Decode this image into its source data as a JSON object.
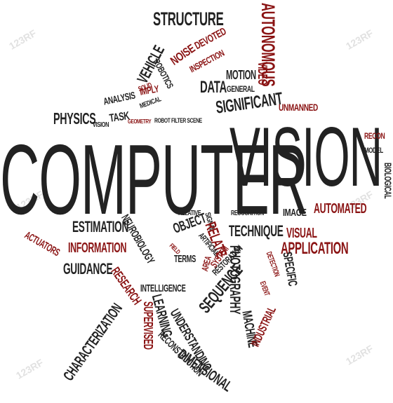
{
  "title_words": {
    "computer": "COMPUTER",
    "vision": "VISION"
  },
  "words": {
    "structure": "STRUCTURE",
    "autonomous": "AUTONOMOUS",
    "vehicle": "VEHICLE",
    "noise": "NOISE",
    "devoted": "DEVOTED",
    "robotics": "ROBOTICS",
    "inspection": "INSPECTION",
    "data": "DATA",
    "motion": "MOTION",
    "general": "GENERAL",
    "video": "VIDEO",
    "solid": "SOLID",
    "imply": "IMPLY",
    "analysis": "ANALYSIS",
    "medical": "MEDICAL",
    "significant": "SIGNIFICANT",
    "unmanned": "UNMANNED",
    "physics": "PHYSICS",
    "vision_small": "VISION",
    "task": "TASK",
    "geometry": "GEOMETRY",
    "robot_filter_scene": "ROBOT FILTER SCENE",
    "recon": "RECON",
    "model": "MODEL",
    "biological": "BIOLOGICAL",
    "estimation": "ESTIMATION",
    "relative": "RELATIVE",
    "signal": "SIGNAL",
    "recognition": "RECOGNITION",
    "image": "IMAGE",
    "automated": "AUTOMATED",
    "object": "OBJECT",
    "relate": "RELATE",
    "technique": "TECHNIQUE",
    "visual": "VISUAL",
    "actuators": "ACTUATORS",
    "information": "INFORMATION",
    "neurobiology": "NEUROBIOLOGY",
    "application": "APPLICATION",
    "guidance": "GUIDANCE",
    "field": "FIELD",
    "terms": "TERMS",
    "artificial": "ARTIFICIAL",
    "photography": "PHOTOGRAPHY",
    "specific": "SPECIFIC",
    "detection": "DETECTION",
    "event": "EVENT",
    "research": "RESEARCH",
    "intelligence": "INTELLIGENCE",
    "area": "AREA",
    "system": "SYSTEM",
    "restoration": "RESTORATION",
    "sequence": "SEQUENCE",
    "machine": "MACHINE",
    "industrial": "INDUSTRIAL",
    "characterization": "CHARACTERIZATION",
    "learning": "LEARNING",
    "supervised": "SUPERVISED",
    "understanding": "UNDERSTANDING",
    "reconstruction": "RECONSTRUCTION",
    "dimensional": "DIMENSIONAL"
  },
  "watermark": "123RF",
  "colors": {
    "dark": "#222222",
    "red": "#8a1313",
    "grey": "#4a4a4a",
    "background": "#ffffff"
  }
}
